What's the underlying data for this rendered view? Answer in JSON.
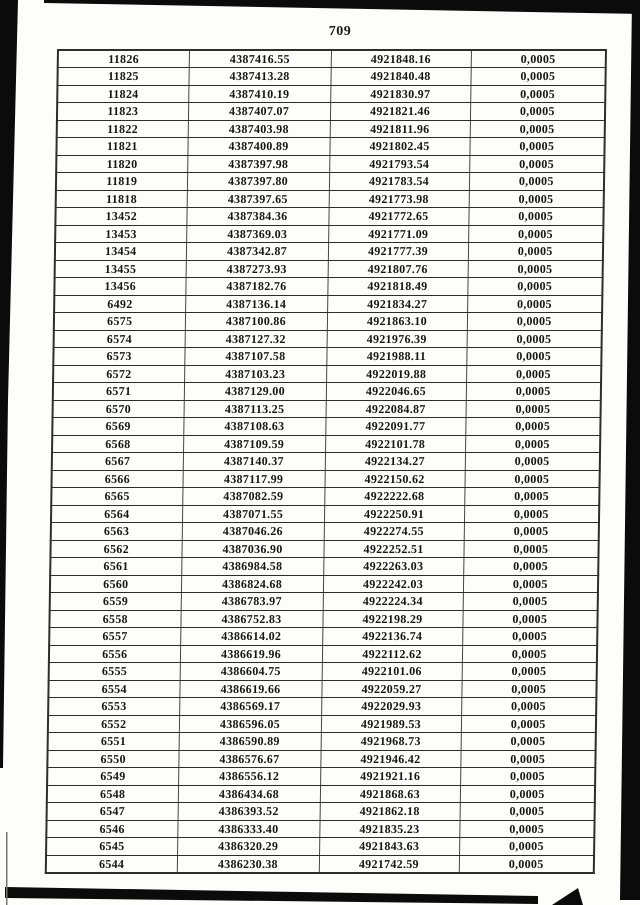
{
  "page_number": "709",
  "table": {
    "tolerance_value": "0,0005",
    "rows": [
      [
        "11826",
        "4387416.55",
        "4921848.16",
        "0,0005"
      ],
      [
        "11825",
        "4387413.28",
        "4921840.48",
        "0,0005"
      ],
      [
        "11824",
        "4387410.19",
        "4921830.97",
        "0,0005"
      ],
      [
        "11823",
        "4387407.07",
        "4921821.46",
        "0,0005"
      ],
      [
        "11822",
        "4387403.98",
        "4921811.96",
        "0,0005"
      ],
      [
        "11821",
        "4387400.89",
        "4921802.45",
        "0,0005"
      ],
      [
        "11820",
        "4387397.98",
        "4921793.54",
        "0,0005"
      ],
      [
        "11819",
        "4387397.80",
        "4921783.54",
        "0,0005"
      ],
      [
        "11818",
        "4387397.65",
        "4921773.98",
        "0,0005"
      ],
      [
        "13452",
        "4387384.36",
        "4921772.65",
        "0,0005"
      ],
      [
        "13453",
        "4387369.03",
        "4921771.09",
        "0,0005"
      ],
      [
        "13454",
        "4387342.87",
        "4921777.39",
        "0,0005"
      ],
      [
        "13455",
        "4387273.93",
        "4921807.76",
        "0,0005"
      ],
      [
        "13456",
        "4387182.76",
        "4921818.49",
        "0,0005"
      ],
      [
        "6492",
        "4387136.14",
        "4921834.27",
        "0,0005"
      ],
      [
        "6575",
        "4387100.86",
        "4921863.10",
        "0,0005"
      ],
      [
        "6574",
        "4387127.32",
        "4921976.39",
        "0,0005"
      ],
      [
        "6573",
        "4387107.58",
        "4921988.11",
        "0,0005"
      ],
      [
        "6572",
        "4387103.23",
        "4922019.88",
        "0,0005"
      ],
      [
        "6571",
        "4387129.00",
        "4922046.65",
        "0,0005"
      ],
      [
        "6570",
        "4387113.25",
        "4922084.87",
        "0,0005"
      ],
      [
        "6569",
        "4387108.63",
        "4922091.77",
        "0,0005"
      ],
      [
        "6568",
        "4387109.59",
        "4922101.78",
        "0,0005"
      ],
      [
        "6567",
        "4387140.37",
        "4922134.27",
        "0,0005"
      ],
      [
        "6566",
        "4387117.99",
        "4922150.62",
        "0,0005"
      ],
      [
        "6565",
        "4387082.59",
        "4922222.68",
        "0,0005"
      ],
      [
        "6564",
        "4387071.55",
        "4922250.91",
        "0,0005"
      ],
      [
        "6563",
        "4387046.26",
        "4922274.55",
        "0,0005"
      ],
      [
        "6562",
        "4387036.90",
        "4922252.51",
        "0,0005"
      ],
      [
        "6561",
        "4386984.58",
        "4922263.03",
        "0,0005"
      ],
      [
        "6560",
        "4386824.68",
        "4922242.03",
        "0,0005"
      ],
      [
        "6559",
        "4386783.97",
        "4922224.34",
        "0,0005"
      ],
      [
        "6558",
        "4386752.83",
        "4922198.29",
        "0,0005"
      ],
      [
        "6557",
        "4386614.02",
        "4922136.74",
        "0,0005"
      ],
      [
        "6556",
        "4386619.96",
        "4922112.62",
        "0,0005"
      ],
      [
        "6555",
        "4386604.75",
        "4922101.06",
        "0,0005"
      ],
      [
        "6554",
        "4386619.66",
        "4922059.27",
        "0,0005"
      ],
      [
        "6553",
        "4386569.17",
        "4922029.93",
        "0,0005"
      ],
      [
        "6552",
        "4386596.05",
        "4921989.53",
        "0,0005"
      ],
      [
        "6551",
        "4386590.89",
        "4921968.73",
        "0,0005"
      ],
      [
        "6550",
        "4386576.67",
        "4921946.42",
        "0,0005"
      ],
      [
        "6549",
        "4386556.12",
        "4921921.16",
        "0,0005"
      ],
      [
        "6548",
        "4386434.68",
        "4921868.63",
        "0,0005"
      ],
      [
        "6547",
        "4386393.52",
        "4921862.18",
        "0,0005"
      ],
      [
        "6546",
        "4386333.40",
        "4921835.23",
        "0,0005"
      ],
      [
        "6545",
        "4386320.29",
        "4921843.63",
        "0,0005"
      ],
      [
        "6544",
        "4386230.38",
        "4921742.59",
        "0,0005"
      ]
    ]
  },
  "colors": {
    "paper": "#fdfdfc",
    "ink": "#161616",
    "table_line": "#2e2e2e",
    "scan_artifact": "#0b0b0b"
  }
}
